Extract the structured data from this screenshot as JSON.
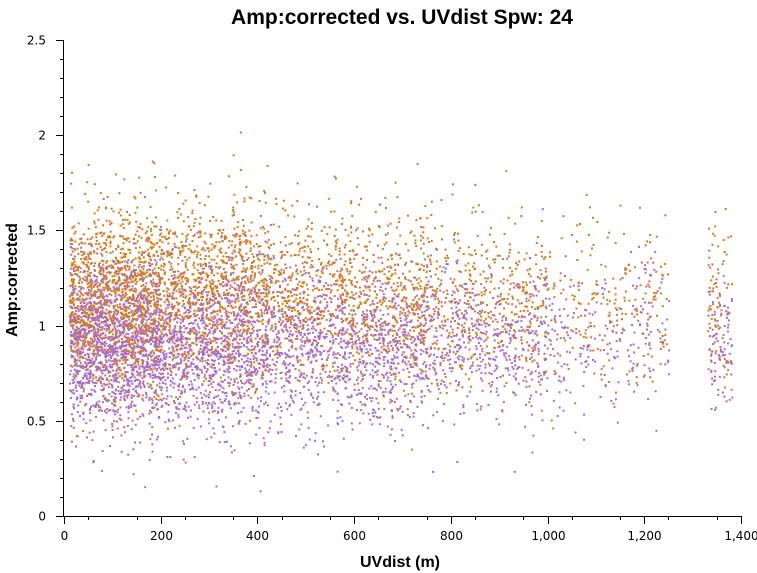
{
  "chart_data": {
    "type": "scatter",
    "title": "Amp:corrected vs. UVdist Spw: 24",
    "xlabel": "UVdist (m)",
    "ylabel": "Amp:corrected",
    "xlim": [
      0,
      1400
    ],
    "ylim": [
      0,
      2.5
    ],
    "x_ticks": [
      0,
      200,
      400,
      600,
      800,
      1000,
      1200,
      1400
    ],
    "x_tick_labels": [
      "0",
      "200",
      "400",
      "600",
      "800",
      "1,000",
      "1,200",
      "1,400"
    ],
    "y_ticks": [
      0,
      0.5,
      1,
      1.5,
      2,
      2.5
    ],
    "y_tick_labels": [
      "0",
      "0.5",
      "1",
      "1.5",
      "2",
      "2.5"
    ],
    "grid": false,
    "legend": "none",
    "series": [
      {
        "color": "#d97a1a",
        "density_profile": [
          {
            "x_range": [
              10,
              200
            ],
            "y_center": 1.12,
            "y_spread": 0.24,
            "weight": 0.33
          },
          {
            "x_range": [
              200,
              420
            ],
            "y_center": 1.15,
            "y_spread": 0.24,
            "weight": 0.25
          },
          {
            "x_range": [
              420,
              750
            ],
            "y_center": 1.13,
            "y_spread": 0.23,
            "weight": 0.24
          },
          {
            "x_range": [
              750,
              1000
            ],
            "y_center": 1.12,
            "y_spread": 0.23,
            "weight": 0.11
          },
          {
            "x_range": [
              1000,
              1250
            ],
            "y_center": 1.1,
            "y_spread": 0.24,
            "weight": 0.05
          },
          {
            "x_range": [
              1330,
              1380
            ],
            "y_center": 1.1,
            "y_spread": 0.22,
            "weight": 0.02
          }
        ]
      },
      {
        "color": "#a66bd6",
        "density_profile": [
          {
            "x_range": [
              10,
              200
            ],
            "y_center": 0.9,
            "y_spread": 0.22,
            "weight": 0.33
          },
          {
            "x_range": [
              200,
              420
            ],
            "y_center": 0.9,
            "y_spread": 0.22,
            "weight": 0.25
          },
          {
            "x_range": [
              420,
              750
            ],
            "y_center": 0.9,
            "y_spread": 0.21,
            "weight": 0.24
          },
          {
            "x_range": [
              750,
              1000
            ],
            "y_center": 0.93,
            "y_spread": 0.2,
            "weight": 0.11
          },
          {
            "x_range": [
              1000,
              1250
            ],
            "y_center": 0.95,
            "y_spread": 0.2,
            "weight": 0.05
          },
          {
            "x_range": [
              1330,
              1380
            ],
            "y_center": 0.95,
            "y_spread": 0.18,
            "weight": 0.02
          }
        ]
      }
    ]
  }
}
